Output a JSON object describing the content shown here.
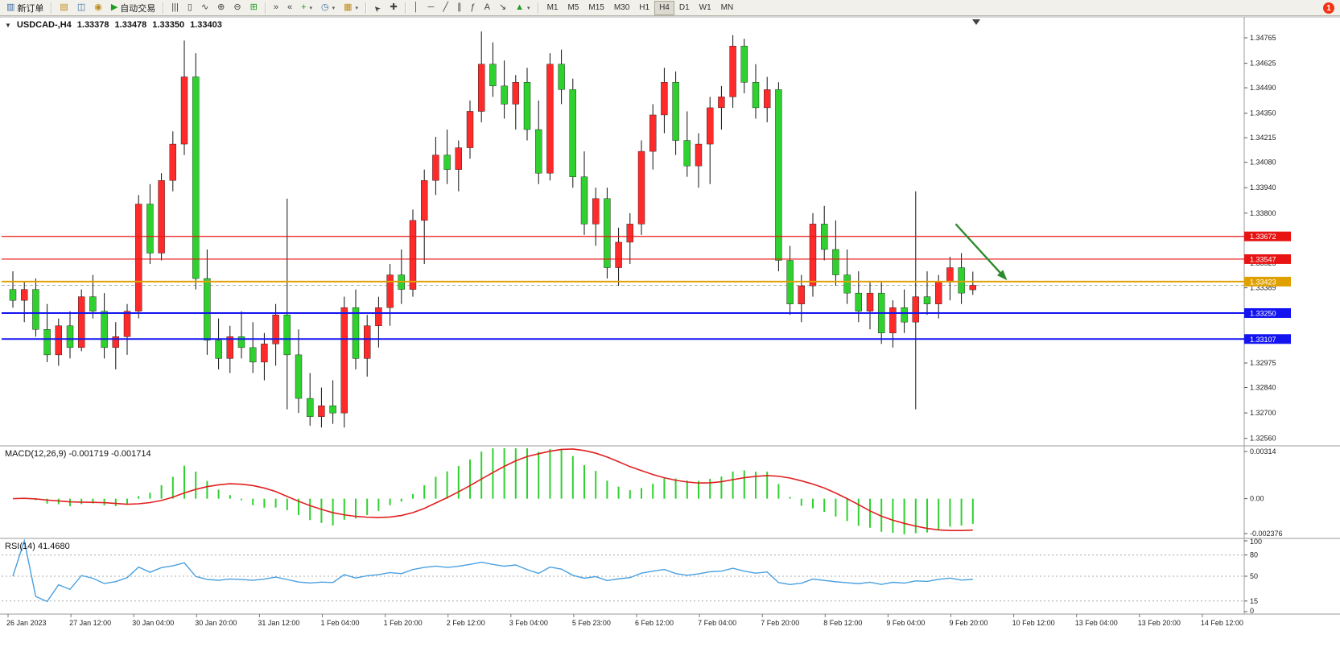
{
  "toolbar": {
    "new_order": "新订单",
    "auto_trading": "自动交易",
    "timeframes": [
      "M1",
      "M5",
      "M15",
      "M30",
      "H1",
      "H4",
      "D1",
      "W1",
      "MN"
    ],
    "active_timeframe": "H4",
    "notification_badge": "1",
    "icons": {
      "new_order": "▥",
      "market_watch": "▤",
      "data_window": "◫",
      "navigator": "◉",
      "auto_play": "▶",
      "bars_chart": "|||",
      "candle_chart": "▯",
      "line_chart": "∿",
      "zoom_in": "⊕",
      "zoom_out": "⊖",
      "tile_windows": "⊞",
      "auto_scroll": "»",
      "chart_shift": "«",
      "indicators_plus": "+",
      "clock": "◷",
      "template": "▦",
      "cursor": "➤",
      "crosshair": "✚",
      "vertical_line": "│",
      "horizontal_line": "─",
      "trend_line": "╱",
      "channel": "∥",
      "fibonacci": "ƒ",
      "text_tool": "A",
      "arrow_tool": "↘",
      "shapes": "▲",
      "dropdown_caret": "▾",
      "header_caret": "▼"
    }
  },
  "chart_header": {
    "symbol": "USDCAD-,H4",
    "open": "1.33378",
    "high": "1.33478",
    "low": "1.33350",
    "close": "1.33403"
  },
  "indicators": {
    "macd_label": "MACD(12,26,9)",
    "macd_values": "-0.001719 -0.001714",
    "rsi_label": "RSI(14)",
    "rsi_value": "41.4680"
  },
  "chart_data": {
    "type": "candlestick",
    "symbol": "USDCAD",
    "timeframe": "H4",
    "up_color": "#ff2a2a",
    "down_color": "#2fd12f",
    "wick_color": "#111111",
    "candles": [
      [
        1.3338,
        1.3348,
        1.3328,
        1.3332
      ],
      [
        1.3332,
        1.3342,
        1.332,
        1.3338
      ],
      [
        1.3338,
        1.3344,
        1.3312,
        1.3316
      ],
      [
        1.3316,
        1.333,
        1.3298,
        1.3302
      ],
      [
        1.3302,
        1.3322,
        1.3296,
        1.3318
      ],
      [
        1.3318,
        1.3326,
        1.33,
        1.3306
      ],
      [
        1.3306,
        1.3338,
        1.3304,
        1.3334
      ],
      [
        1.3334,
        1.3346,
        1.3322,
        1.3326
      ],
      [
        1.3326,
        1.3336,
        1.33,
        1.3306
      ],
      [
        1.3306,
        1.332,
        1.3294,
        1.3312
      ],
      [
        1.3312,
        1.333,
        1.3302,
        1.3326
      ],
      [
        1.3326,
        1.339,
        1.3322,
        1.3385
      ],
      [
        1.3385,
        1.3396,
        1.3352,
        1.3358
      ],
      [
        1.3358,
        1.3402,
        1.3354,
        1.3398
      ],
      [
        1.3398,
        1.3425,
        1.3392,
        1.3418
      ],
      [
        1.3418,
        1.3475,
        1.3412,
        1.3455
      ],
      [
        1.3455,
        1.3468,
        1.3338,
        1.3344
      ],
      [
        1.3344,
        1.336,
        1.3302,
        1.331
      ],
      [
        1.331,
        1.3322,
        1.3294,
        1.33
      ],
      [
        1.33,
        1.3318,
        1.3292,
        1.3312
      ],
      [
        1.3312,
        1.3326,
        1.33,
        1.3306
      ],
      [
        1.3306,
        1.332,
        1.3292,
        1.3298
      ],
      [
        1.3298,
        1.3314,
        1.3288,
        1.3308
      ],
      [
        1.3308,
        1.333,
        1.3296,
        1.3324
      ],
      [
        1.3324,
        1.3388,
        1.3272,
        1.3302
      ],
      [
        1.3302,
        1.3316,
        1.327,
        1.3278
      ],
      [
        1.3278,
        1.3292,
        1.3263,
        1.3268
      ],
      [
        1.3268,
        1.3284,
        1.3262,
        1.3274
      ],
      [
        1.3274,
        1.3288,
        1.3264,
        1.327
      ],
      [
        1.327,
        1.3334,
        1.3262,
        1.3328
      ],
      [
        1.3328,
        1.3338,
        1.3294,
        1.33
      ],
      [
        1.33,
        1.3324,
        1.329,
        1.3318
      ],
      [
        1.3318,
        1.3334,
        1.3306,
        1.3328
      ],
      [
        1.3328,
        1.3352,
        1.3318,
        1.3346
      ],
      [
        1.3346,
        1.336,
        1.333,
        1.3338
      ],
      [
        1.3338,
        1.3382,
        1.3334,
        1.3376
      ],
      [
        1.3376,
        1.3404,
        1.3352,
        1.3398
      ],
      [
        1.3398,
        1.3422,
        1.339,
        1.3412
      ],
      [
        1.3412,
        1.3426,
        1.3396,
        1.3404
      ],
      [
        1.3404,
        1.342,
        1.3392,
        1.3416
      ],
      [
        1.3416,
        1.3442,
        1.341,
        1.3436
      ],
      [
        1.3436,
        1.348,
        1.343,
        1.3462
      ],
      [
        1.3462,
        1.3474,
        1.3444,
        1.345
      ],
      [
        1.345,
        1.3464,
        1.3432,
        1.344
      ],
      [
        1.344,
        1.3456,
        1.3426,
        1.3452
      ],
      [
        1.3452,
        1.346,
        1.342,
        1.3426
      ],
      [
        1.3426,
        1.3442,
        1.3396,
        1.3402
      ],
      [
        1.3402,
        1.3468,
        1.3398,
        1.3462
      ],
      [
        1.3462,
        1.347,
        1.344,
        1.3448
      ],
      [
        1.3448,
        1.3454,
        1.3394,
        1.34
      ],
      [
        1.34,
        1.3414,
        1.3368,
        1.3374
      ],
      [
        1.3374,
        1.3394,
        1.3362,
        1.3388
      ],
      [
        1.3388,
        1.3394,
        1.3344,
        1.335
      ],
      [
        1.335,
        1.3372,
        1.334,
        1.3364
      ],
      [
        1.3364,
        1.338,
        1.3352,
        1.3374
      ],
      [
        1.3374,
        1.342,
        1.3368,
        1.3414
      ],
      [
        1.3414,
        1.344,
        1.3404,
        1.3434
      ],
      [
        1.3434,
        1.346,
        1.3424,
        1.3452
      ],
      [
        1.3452,
        1.3458,
        1.3412,
        1.342
      ],
      [
        1.342,
        1.3436,
        1.34,
        1.3406
      ],
      [
        1.3406,
        1.3424,
        1.3394,
        1.3418
      ],
      [
        1.3418,
        1.3444,
        1.3396,
        1.3438
      ],
      [
        1.3438,
        1.345,
        1.3426,
        1.3444
      ],
      [
        1.3444,
        1.3478,
        1.3438,
        1.3472
      ],
      [
        1.3472,
        1.3476,
        1.3446,
        1.3452
      ],
      [
        1.3452,
        1.3462,
        1.3432,
        1.3438
      ],
      [
        1.3438,
        1.3455,
        1.343,
        1.3448
      ],
      [
        1.3448,
        1.3452,
        1.3348,
        1.3354
      ],
      [
        1.3354,
        1.3362,
        1.3324,
        1.333
      ],
      [
        1.333,
        1.3346,
        1.332,
        1.334
      ],
      [
        1.334,
        1.338,
        1.3334,
        1.3374
      ],
      [
        1.3374,
        1.3384,
        1.3354,
        1.336
      ],
      [
        1.336,
        1.3376,
        1.334,
        1.3346
      ],
      [
        1.3346,
        1.336,
        1.333,
        1.3336
      ],
      [
        1.3336,
        1.3348,
        1.332,
        1.3326
      ],
      [
        1.3326,
        1.3342,
        1.3316,
        1.3336
      ],
      [
        1.3336,
        1.3342,
        1.3308,
        1.3314
      ],
      [
        1.3314,
        1.3332,
        1.3306,
        1.3328
      ],
      [
        1.3328,
        1.3338,
        1.3314,
        1.332
      ],
      [
        1.332,
        1.3392,
        1.3272,
        1.3334
      ],
      [
        1.3334,
        1.3348,
        1.3324,
        1.333
      ],
      [
        1.333,
        1.3346,
        1.3322,
        1.3342
      ],
      [
        1.3342,
        1.3356,
        1.3332,
        1.335
      ],
      [
        1.335,
        1.3358,
        1.333,
        1.3336
      ],
      [
        1.33378,
        1.33478,
        1.3335,
        1.33403
      ]
    ],
    "price_axis": {
      "top_price": 1.34765,
      "bottom_price": 1.3256,
      "labels": [
        "1.34765",
        "1.34625",
        "1.34490",
        "1.34350",
        "1.34215",
        "1.34080",
        "1.33940",
        "1.33800",
        "1.33525",
        "1.33389",
        "1.32975",
        "1.32840",
        "1.32700",
        "1.32560"
      ]
    },
    "hlines": [
      {
        "price": 1.33672,
        "label": "1.33672",
        "color": "#e81414",
        "width": 1.2
      },
      {
        "price": 1.33547,
        "label": "1.33547",
        "color": "#e81414",
        "width": 1.2
      },
      {
        "price": 1.33423,
        "label": "1.33423",
        "color": "#e0a000",
        "width": 2
      },
      {
        "price": 1.3325,
        "label": "1.33250",
        "color": "#1414f0",
        "width": 2
      },
      {
        "price": 1.33107,
        "label": "1.33107",
        "color": "#1414f0",
        "width": 2
      }
    ],
    "bid_line": {
      "price": 1.33403,
      "color": "#b0b0b0"
    },
    "time_labels": [
      "26 Jan 2023",
      "27 Jan 12:00",
      "30 Jan 04:00",
      "30 Jan 20:00",
      "31 Jan 12:00",
      "1 Feb 04:00",
      "1 Feb 20:00",
      "2 Feb 12:00",
      "3 Feb 04:00",
      "5 Feb 23:00",
      "6 Feb 12:00",
      "7 Feb 04:00",
      "7 Feb 20:00",
      "8 Feb 12:00",
      "9 Feb 04:00",
      "9 Feb 20:00",
      "10 Feb 12:00",
      "13 Feb 04:00",
      "13 Feb 20:00",
      "14 Feb 12:00"
    ],
    "macd": {
      "params": "12,26,9",
      "value": -0.001719,
      "signal_value": -0.001714,
      "axis_max": "0.00314",
      "axis_zero": "0.00",
      "axis_min": "-0.002376",
      "bar_color": "#2fd12f",
      "signal_color": "#e02020"
    },
    "rsi": {
      "period": 14,
      "value": 41.468,
      "levels": [
        80,
        50,
        15
      ],
      "axis_labels": [
        "100",
        "80",
        "50",
        "15",
        "0"
      ],
      "axis_values": [
        100,
        80,
        50,
        15,
        0
      ],
      "line_color": "#49a0e0"
    },
    "annotations": [
      {
        "type": "trend-arrow",
        "color": "#2d8a2d",
        "i1": 82.5,
        "p1": 1.3374,
        "i2": 87.0,
        "p2": 1.3343
      }
    ]
  }
}
